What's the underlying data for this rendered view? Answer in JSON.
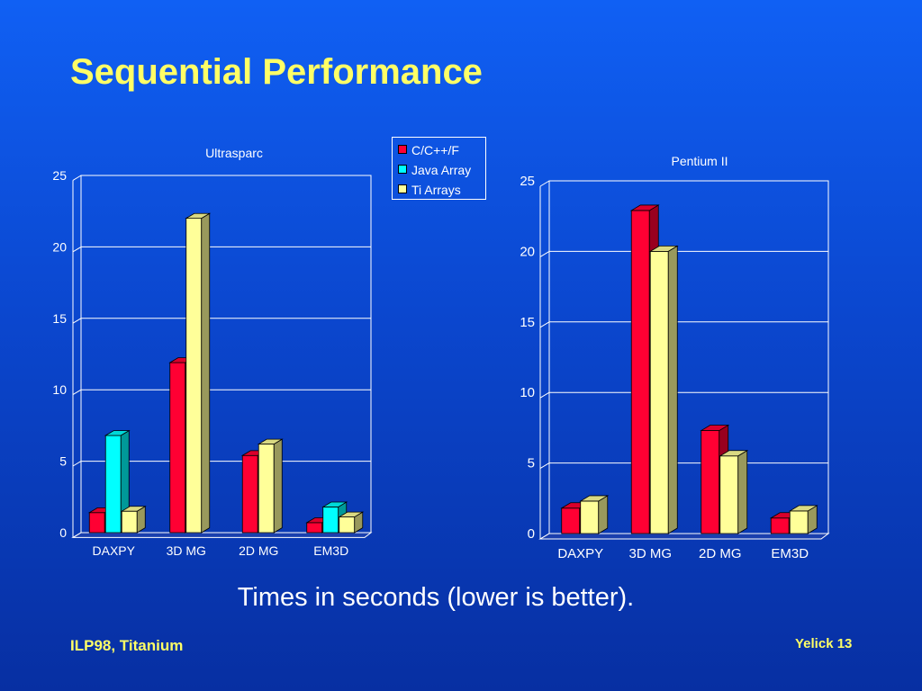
{
  "slide": {
    "title": "Sequential Performance",
    "caption": "Times in seconds (lower is better).",
    "footer_left": "ILP98, Titanium",
    "footer_right": "Yelick 13"
  },
  "colors": {
    "title_text": "#ffff66",
    "grid": "#ffffff",
    "series": [
      "#ff0033",
      "#00ffff",
      "#ffff99"
    ]
  },
  "legend": {
    "items": [
      {
        "label": "C/C++/F",
        "color": "#ff0033"
      },
      {
        "label": "Java Array",
        "color": "#00ffff"
      },
      {
        "label": "Ti Arrays",
        "color": "#ffff99"
      }
    ]
  },
  "chart_data": [
    {
      "type": "bar",
      "title": "Ultrasparc",
      "categories": [
        "DAXPY",
        "3D MG",
        "2D MG",
        "EM3D"
      ],
      "ylim": [
        0,
        25
      ],
      "yticks": [
        0,
        5,
        10,
        15,
        20,
        25
      ],
      "grid": true,
      "legend_placement": "top-right",
      "series": [
        {
          "name": "C/C++/F",
          "values": [
            1.4,
            11.9,
            5.4,
            0.7
          ]
        },
        {
          "name": "Java Array",
          "values": [
            6.8,
            null,
            null,
            1.8
          ]
        },
        {
          "name": "Ti Arrays",
          "values": [
            1.5,
            22.0,
            6.2,
            1.1
          ]
        }
      ]
    },
    {
      "type": "bar",
      "title": "Pentium II",
      "categories": [
        "DAXPY",
        "3D MG",
        "2D MG",
        "EM3D"
      ],
      "ylim": [
        0,
        25
      ],
      "yticks": [
        0,
        5,
        10,
        15,
        20,
        25
      ],
      "grid": true,
      "series": [
        {
          "name": "C/C++/F",
          "values": [
            1.8,
            22.9,
            7.3,
            1.1
          ]
        },
        {
          "name": "Java Array",
          "values": [
            null,
            null,
            null,
            null
          ]
        },
        {
          "name": "Ti Arrays",
          "values": [
            2.3,
            20.0,
            5.5,
            1.6
          ]
        }
      ]
    }
  ]
}
